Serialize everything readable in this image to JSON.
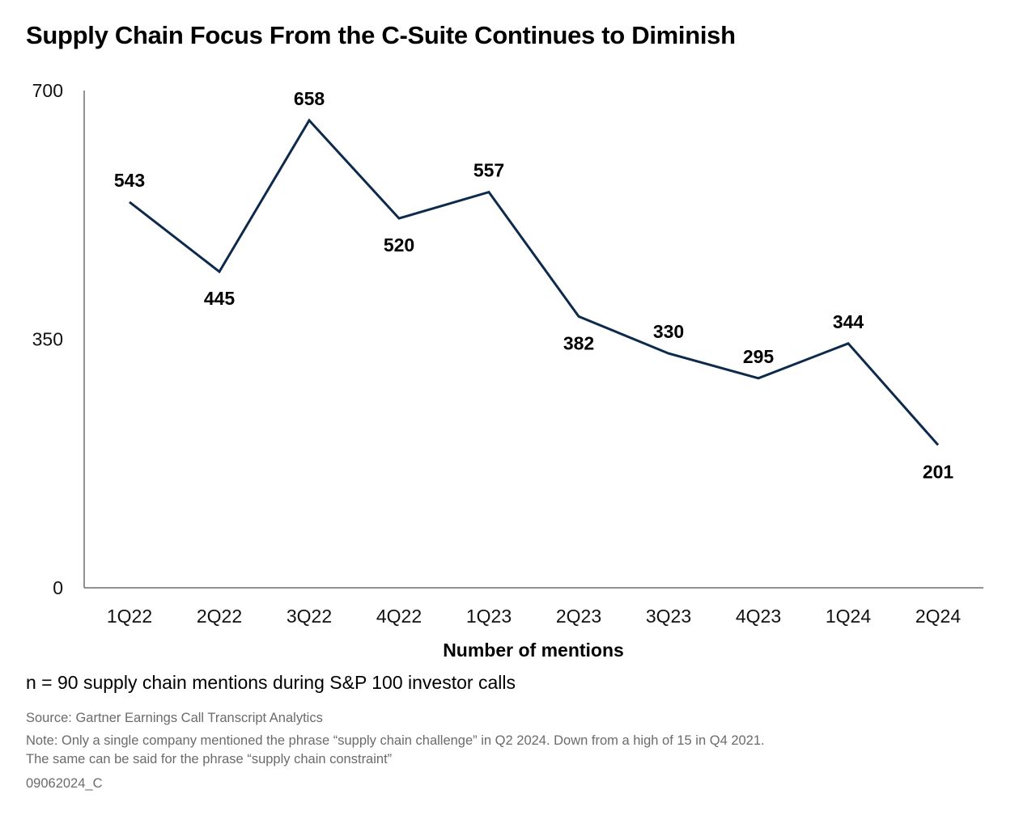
{
  "title": "Supply Chain Focus From the C-Suite Continues to Diminish",
  "chart_data": {
    "type": "line",
    "categories": [
      "1Q22",
      "2Q22",
      "3Q22",
      "4Q22",
      "1Q23",
      "2Q23",
      "3Q23",
      "4Q23",
      "1Q24",
      "2Q24"
    ],
    "values": [
      543,
      445,
      658,
      520,
      557,
      382,
      330,
      295,
      344,
      201
    ],
    "data_labels": [
      "543",
      "445",
      "658",
      "520",
      "557",
      "382",
      "330",
      "295",
      "344",
      "201"
    ],
    "data_label_positions": [
      "above",
      "below",
      "above",
      "below",
      "above",
      "below",
      "above",
      "above",
      "above",
      "below"
    ],
    "xlabel": "Number of mentions",
    "ylabel": "",
    "ylim": [
      0,
      700
    ],
    "yticks": [
      0,
      350,
      700
    ],
    "ytick_labels": [
      "0",
      "350",
      "700"
    ],
    "grid": false,
    "line_color": "#0d2a4d"
  },
  "subtitle_note": "n = 90 supply chain mentions during S&P 100 investor calls",
  "source": "Source: Gartner Earnings Call Transcript Analytics",
  "note_line1": "Note: Only a single company mentioned the phrase “supply chain challenge” in Q2 2024. Down from a high of 15 in Q4 2021.",
  "note_line2": "The same can be said for the phrase “supply chain constraint”",
  "code": "09062024_C"
}
